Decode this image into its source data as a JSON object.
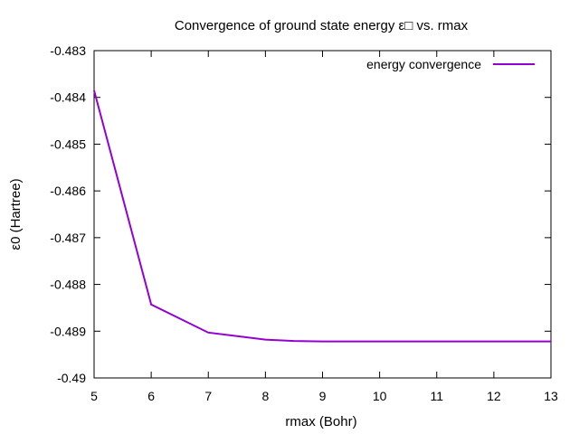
{
  "chart_data": {
    "type": "line",
    "title": "Convergence of ground state energy ε□ vs. rmax",
    "xlabel": "rmax (Bohr)",
    "ylabel": "ε0 (Hartree)",
    "xlim": [
      5,
      13
    ],
    "ylim": [
      -0.49,
      -0.483
    ],
    "xticks": [
      "5",
      "6",
      "7",
      "8",
      "9",
      "10",
      "11",
      "12",
      "13"
    ],
    "yticks": [
      "-0.483",
      "-0.484",
      "-0.485",
      "-0.486",
      "-0.487",
      "-0.488",
      "-0.489",
      "-0.49"
    ],
    "grid": false,
    "legend_position": "top-right",
    "series": [
      {
        "name": "energy convergence",
        "color": "#9400d3",
        "x": [
          5,
          6,
          7,
          8,
          8.5,
          9,
          10,
          11,
          12,
          13
        ],
        "y": [
          -0.48385,
          -0.48843,
          -0.48903,
          -0.48918,
          -0.48921,
          -0.48922,
          -0.48922,
          -0.48922,
          -0.48922,
          -0.48922
        ]
      }
    ]
  }
}
